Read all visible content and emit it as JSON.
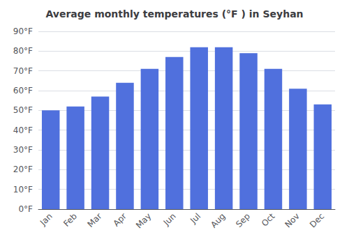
{
  "chart_data": {
    "type": "bar",
    "title": "Average monthly temperatures (°F ) in Seyhan",
    "categories": [
      "Jan",
      "Feb",
      "Mar",
      "Apr",
      "May",
      "Jun",
      "Jul",
      "Aug",
      "Sep",
      "Oct",
      "Nov",
      "Dec"
    ],
    "values": [
      50,
      52,
      57,
      64,
      71,
      77,
      82,
      82,
      79,
      71,
      61,
      53
    ],
    "ylim": [
      0,
      90
    ],
    "yticks": [
      {
        "value": 0,
        "label": "0°F"
      },
      {
        "value": 10,
        "label": "10°F"
      },
      {
        "value": 20,
        "label": "20°F"
      },
      {
        "value": 30,
        "label": "30°F"
      },
      {
        "value": 40,
        "label": "40°F"
      },
      {
        "value": 50,
        "label": "50°F"
      },
      {
        "value": 60,
        "label": "60°F"
      },
      {
        "value": 70,
        "label": "70°F"
      },
      {
        "value": 80,
        "label": "80°F"
      },
      {
        "value": 90,
        "label": "90°F"
      }
    ],
    "grid": true
  }
}
